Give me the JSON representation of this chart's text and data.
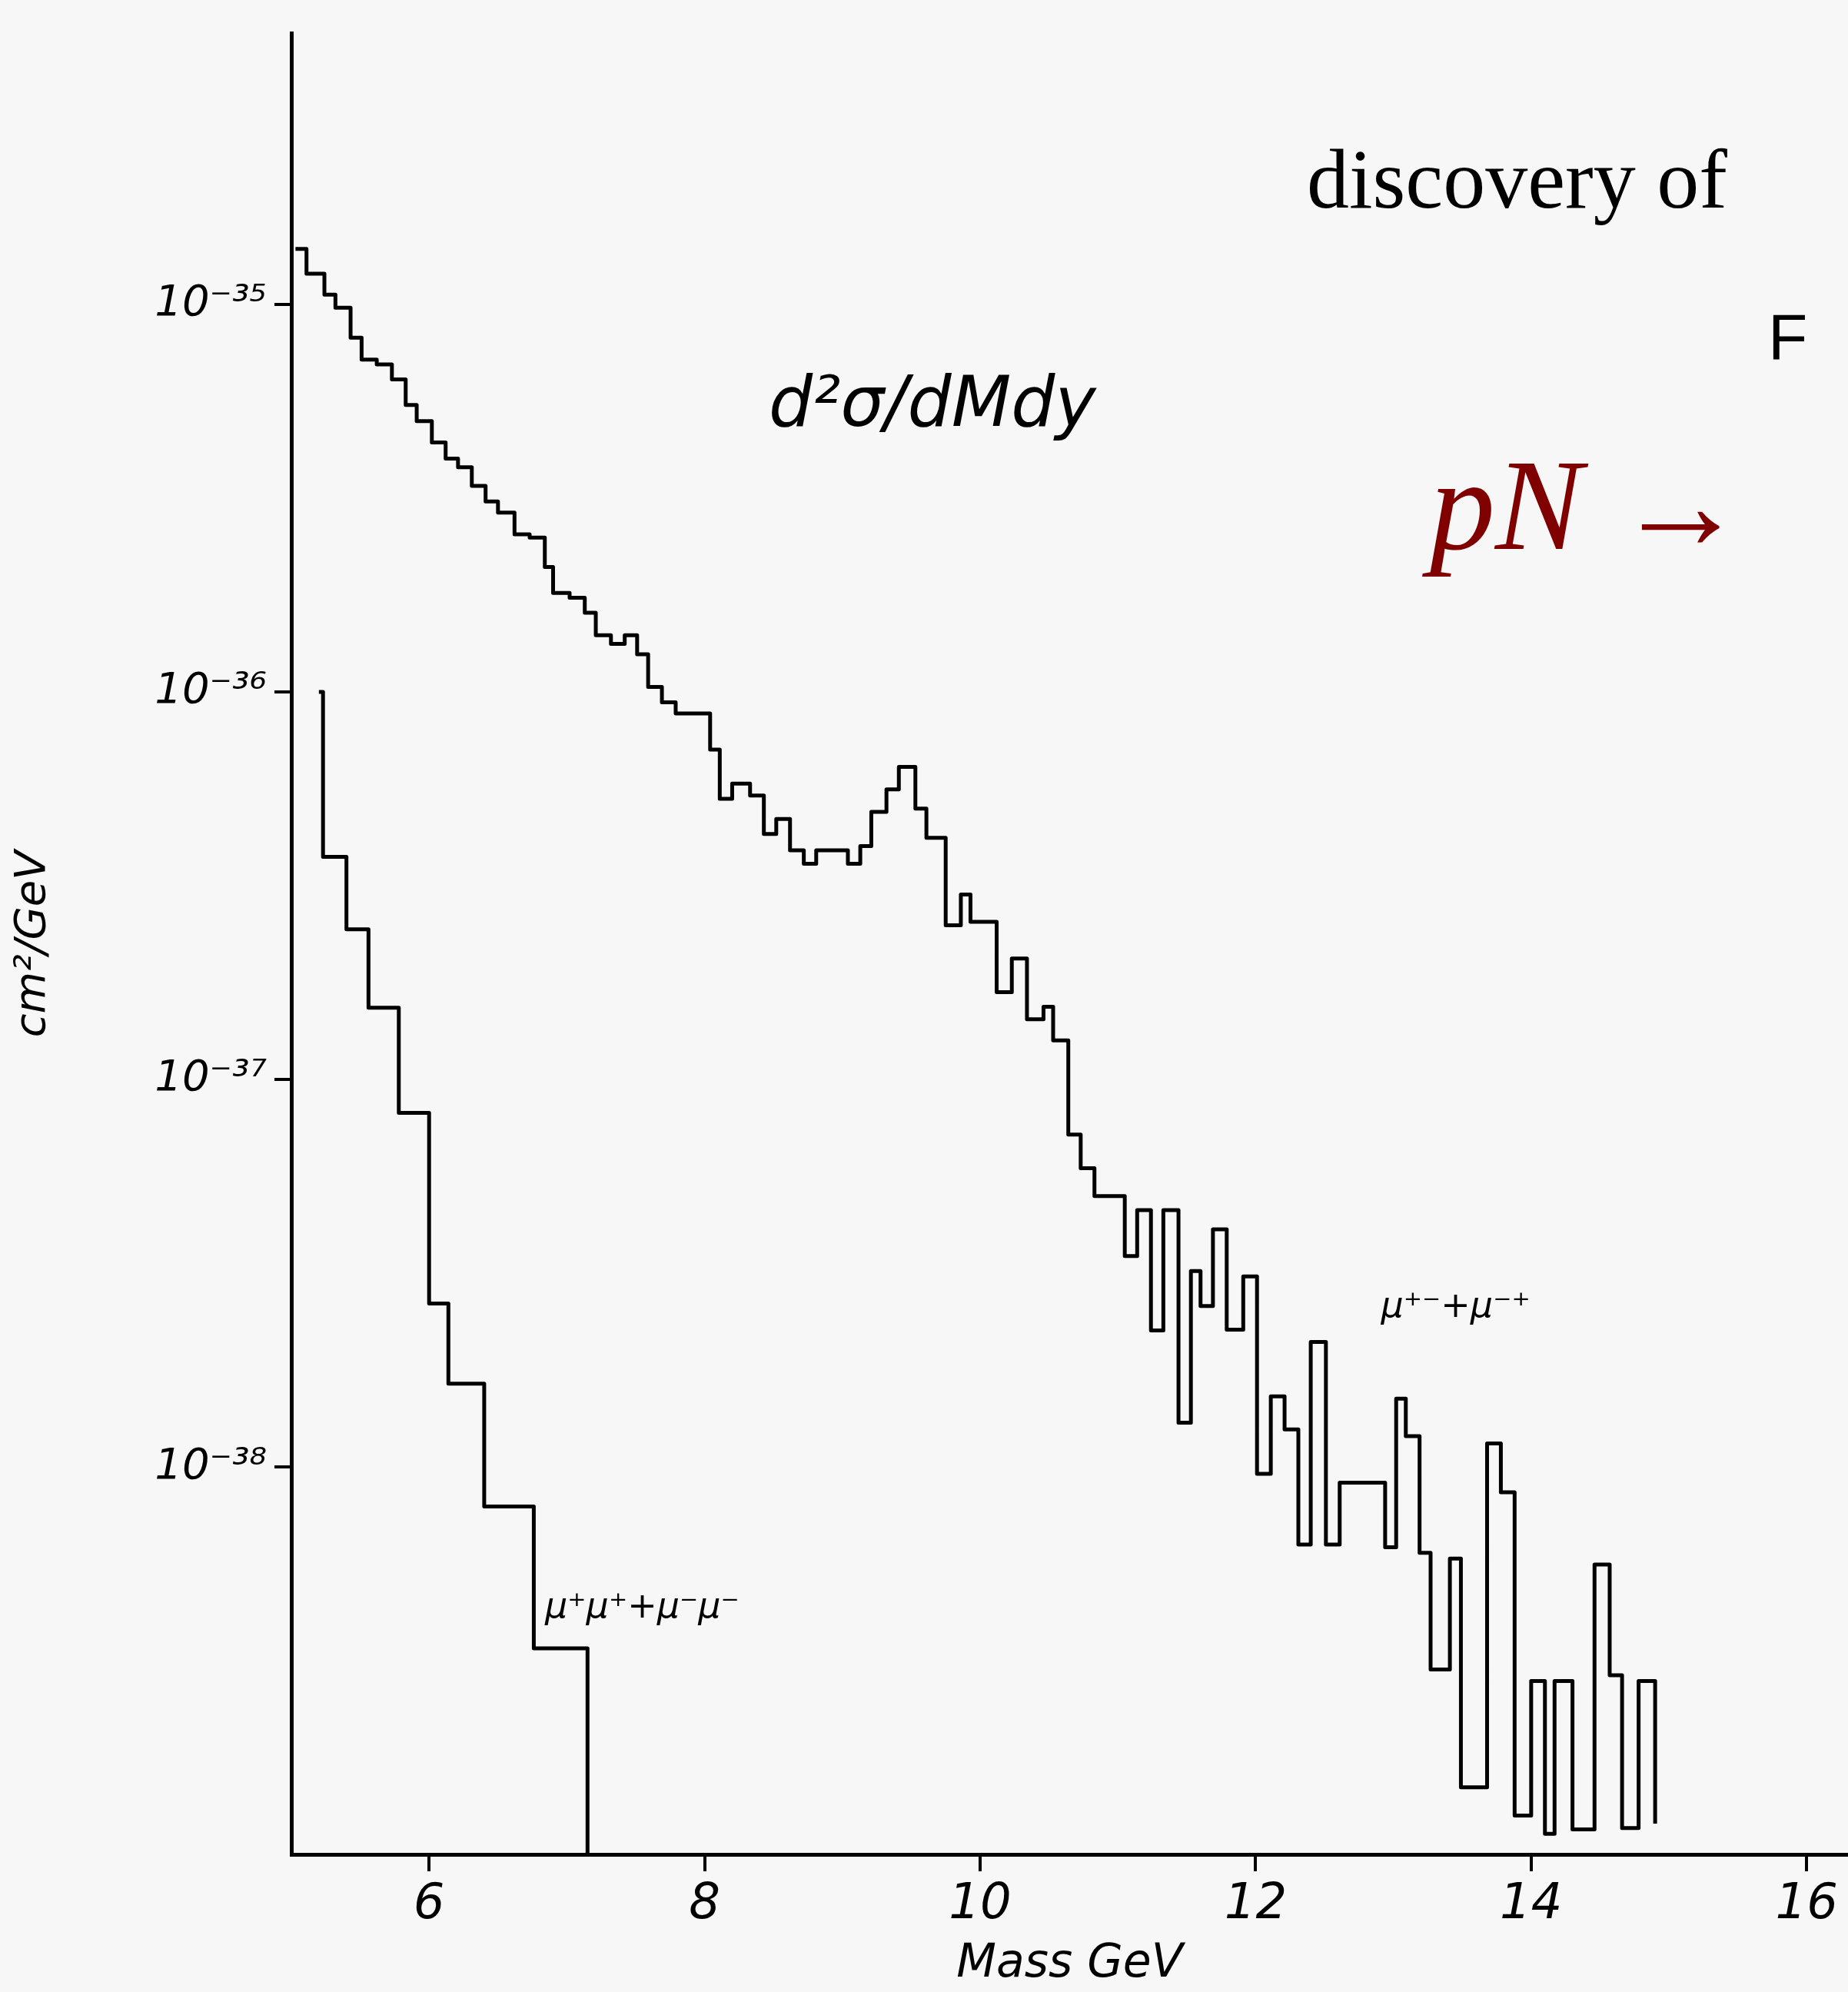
{
  "chart_data": {
    "type": "step",
    "xlabel": "Mass GeV",
    "ylabel": "cm²/GeV",
    "annotations": [
      "d²σ/dMdy",
      "discovery of",
      "F",
      "pN →"
    ],
    "xlim": [
      5,
      16.3
    ],
    "xticks": [
      6,
      8,
      10,
      12,
      14,
      16
    ],
    "ylim": [
      1e-39,
      5e-35
    ],
    "log": true,
    "yticks": [
      {
        "value": 1e-38,
        "label": "10⁻³⁸"
      },
      {
        "value": 1e-37,
        "label": "10⁻³⁷"
      },
      {
        "value": 1e-36,
        "label": "10⁻³⁶"
      },
      {
        "value": 1e-35,
        "label": "10⁻³⁵"
      }
    ],
    "series": [
      {
        "name": "μ⁺⁻+μ⁻⁺",
        "color": "#000000",
        "x": [
          5.03,
          5.11,
          5.24,
          5.32,
          5.43,
          5.51,
          5.62,
          5.73,
          5.83,
          5.91,
          6.02,
          6.12,
          6.21,
          6.31,
          6.41,
          6.5,
          6.62,
          6.73,
          6.84,
          6.9,
          7.02,
          7.13,
          7.21,
          7.32,
          7.42,
          7.51,
          7.59,
          7.69,
          7.79,
          8.04,
          8.11,
          8.2,
          8.33,
          8.43,
          8.52,
          8.62,
          8.72,
          8.81,
          9.04,
          9.13,
          9.21,
          9.32,
          9.41,
          9.53,
          9.61,
          9.75,
          9.86,
          9.93,
          10.12,
          10.23,
          10.34,
          10.46,
          10.53,
          10.64,
          10.73,
          10.83,
          11.05,
          11.14,
          11.24,
          11.33,
          11.44,
          11.53,
          11.6,
          11.69,
          11.79,
          11.91,
          12.01,
          12.11,
          12.21,
          12.31,
          12.4,
          12.51,
          12.61,
          12.94,
          13.02,
          13.09,
          13.19,
          13.27,
          13.41,
          13.49,
          13.68,
          13.78,
          13.88,
          14.0,
          14.1,
          14.17,
          14.3,
          14.46,
          14.57,
          14.66,
          14.78,
          14.9
        ],
        "values": [
          1.39e-35,
          1.2e-35,
          1.06e-35,
          9.8e-36,
          8.2e-36,
          7.2e-36,
          7e-36,
          6.4e-36,
          5.5e-36,
          5e-36,
          4.4e-36,
          4e-36,
          3.8e-36,
          3.4e-36,
          3.1e-36,
          2.9e-36,
          2.55e-36,
          2.5e-36,
          2.1e-36,
          1.8e-36,
          1.75e-36,
          1.6e-36,
          1.4e-36,
          1.33e-36,
          1.4e-36,
          1.25e-36,
          1.03e-36,
          9.4e-37,
          8.8e-37,
          7.1e-37,
          5.3e-37,
          5.8e-37,
          5.4e-37,
          4.3e-37,
          4.7e-37,
          3.9e-37,
          3.6e-37,
          3.9e-37,
          3.6e-37,
          4e-37,
          4.9e-37,
          5.6e-37,
          6.4e-37,
          5e-37,
          4.2e-37,
          2.5e-37,
          3e-37,
          2.55e-37,
          1.68e-37,
          2.05e-37,
          1.43e-37,
          1.54e-37,
          1.26e-37,
          7.2e-38,
          5.9e-38,
          5e-38,
          3.5e-38,
          4.6e-38,
          2.25e-38,
          4.6e-38,
          1.3e-38,
          3.2e-38,
          2.6e-38,
          4.1e-38,
          2.26e-38,
          3.1e-38,
          9.6e-39,
          1.52e-38,
          1.25e-38,
          6.3e-39,
          2.1e-38,
          6.3e-39,
          9.1e-39,
          6.2e-39,
          1.5e-38,
          1.2e-38,
          6e-39,
          3e-39,
          5.8e-39,
          1.49e-39,
          1.15e-38,
          8.6e-39,
          1.26e-39,
          2.8e-39,
          1.13e-39,
          2.8e-39,
          1.16e-39,
          5.6e-39,
          2.9e-39,
          1.17e-39,
          2.8e-39,
          1.2e-39
        ]
      },
      {
        "name": "μ⁺μ⁺+μ⁻μ⁻",
        "color": "#000000",
        "x": [
          5.2,
          5.23,
          5.4,
          5.56,
          5.78,
          6.0,
          6.14,
          6.4,
          6.76,
          7.15
        ],
        "values": [
          1e-36,
          3.75e-37,
          2.44e-37,
          1.53e-37,
          8.2e-38,
          2.64e-38,
          1.64e-38,
          7.9e-39,
          3.4e-39,
          1e-39
        ]
      }
    ]
  }
}
